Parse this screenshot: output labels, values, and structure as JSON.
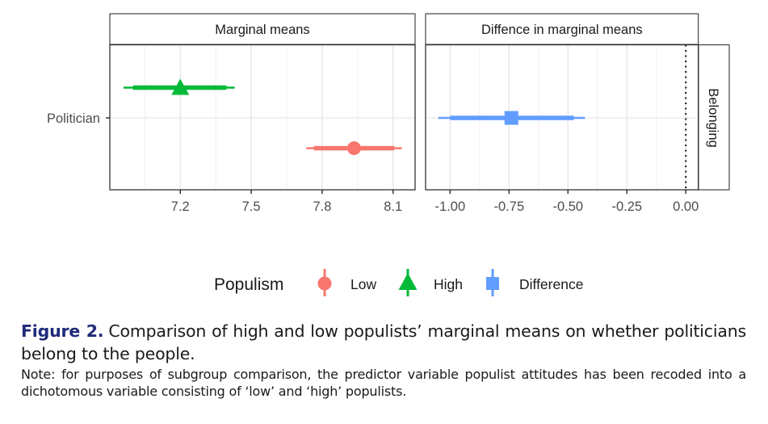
{
  "chart_data": {
    "type": "scatter",
    "subtype": "forest-plot-with-error-bars",
    "panels": [
      {
        "title": "Marginal means",
        "xlim": [
          6.902,
          8.193
        ],
        "x_ticks": [
          7.2,
          7.5,
          7.8,
          8.1
        ],
        "x_tick_labels": [
          "7.2",
          "7.5",
          "7.8",
          "8.1"
        ],
        "x_minor_ticks": [
          7.05,
          7.35,
          7.65,
          7.95
        ],
        "reference_line": null,
        "points": [
          {
            "series": "High",
            "y_offset": 1,
            "estimate": 7.2,
            "ci_inner": [
              7.0,
              7.395
            ],
            "ci_outer": [
              6.96,
              7.43
            ]
          },
          {
            "series": "Low",
            "y_offset": -1,
            "estimate": 7.935,
            "ci_inner": [
              7.765,
              8.105
            ],
            "ci_outer": [
              7.733,
              8.137
            ]
          }
        ]
      },
      {
        "title": "Diffence in marginal means",
        "xlim": [
          -1.104,
          0.053
        ],
        "x_ticks": [
          -1.0,
          -0.75,
          -0.5,
          -0.25,
          0.0
        ],
        "x_tick_labels": [
          "-1.00",
          "-0.75",
          "-0.50",
          "-0.25",
          "0.00"
        ],
        "x_minor_ticks": [
          -0.875,
          -0.625,
          -0.375,
          -0.125
        ],
        "reference_line": 0.0,
        "points": [
          {
            "series": "Difference",
            "y_offset": 0,
            "estimate": -0.74,
            "ci_inner": [
              -1.0,
              -0.475
            ],
            "ci_outer": [
              -1.05,
              -0.428
            ]
          }
        ]
      }
    ],
    "y_categories": [
      "Politician"
    ],
    "row_strip": "Belonging",
    "legend": {
      "title": "Populism",
      "position": "bottom",
      "entries": [
        {
          "label": "Low",
          "shape": "circle",
          "color": "#F8766D"
        },
        {
          "label": "High",
          "shape": "triangle",
          "color": "#00BA38"
        },
        {
          "label": "Difference",
          "shape": "square",
          "color": "#619CFF"
        }
      ]
    },
    "grid": true,
    "xlabel": "",
    "ylabel": ""
  },
  "caption": {
    "label": "Figure 2.",
    "text": "Comparison of high and low populists’ marginal means on whether politicians belong to the people.",
    "note": "Note: for purposes of subgroup comparison, the predictor variable populist attitudes has been recoded into a dichotomous variable consisting of ‘low’ and ‘high’ populists."
  },
  "colors": {
    "low": "#F8766D",
    "high": "#00BA38",
    "difference": "#619CFF",
    "panel_border": "#333333",
    "grid": "#EBEBEB",
    "axis_text": "#4D4D4D",
    "caption_label": "#1F2A7A"
  }
}
